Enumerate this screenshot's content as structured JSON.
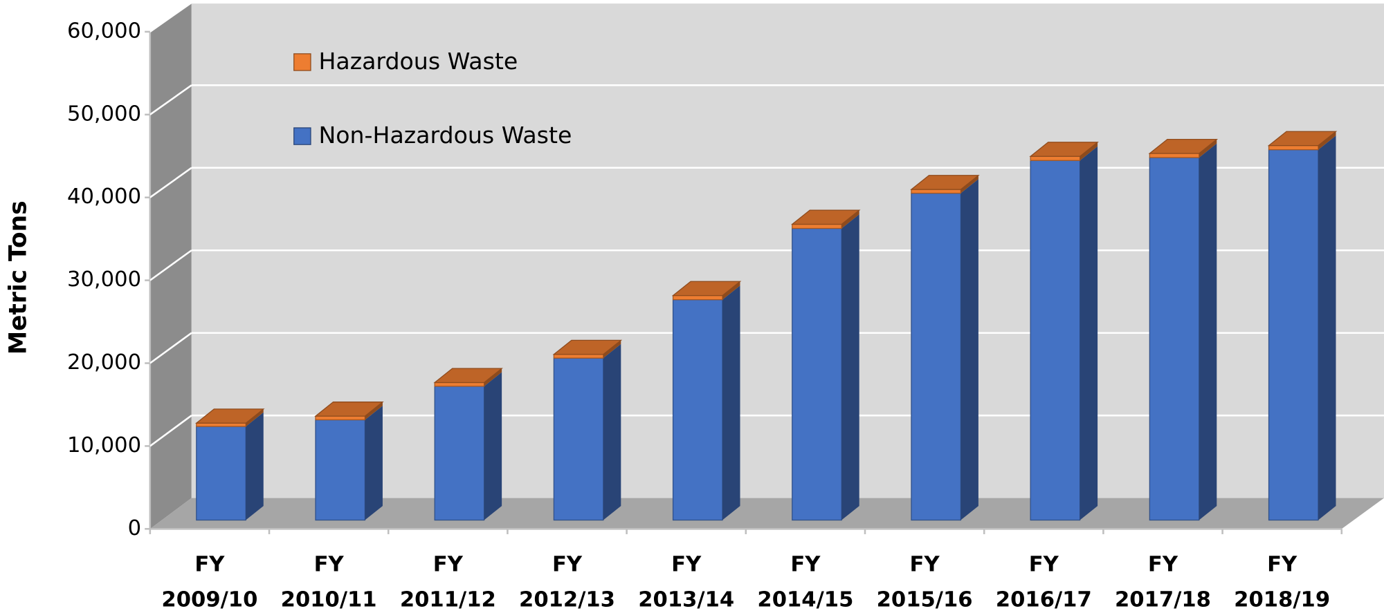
{
  "chart_data": {
    "type": "bar3d_stacked",
    "y_label": "Metric Tons",
    "categories": [
      "FY 2009/10",
      "FY 2010/11",
      "FY 2011/12",
      "FY 2012/13",
      "FY 2013/14",
      "FY 2014/15",
      "FY 2015/16",
      "FY 2016/17",
      "FY 2017/18",
      "FY 2018/19"
    ],
    "series": [
      {
        "name": "Non-Hazardous Waste",
        "color": "#4472c4",
        "values": [
          11300,
          12100,
          16150,
          19550,
          26600,
          35200,
          39450,
          43400,
          43750,
          44700
        ]
      },
      {
        "name": "Hazardous Waste",
        "color": "#ed7d31",
        "values": [
          400,
          450,
          450,
          450,
          500,
          500,
          450,
          500,
          500,
          500
        ]
      }
    ],
    "ylim": [
      0,
      60000
    ],
    "yticks": [
      0,
      {
        "value": 10000,
        "label": "10,000"
      },
      {
        "value": 20000,
        "label": "20,000"
      },
      {
        "value": 30000,
        "label": "30,000"
      },
      {
        "value": 40000,
        "label": "40,000"
      },
      {
        "value": 50000,
        "label": "50,000"
      },
      {
        "value": 60000,
        "label": "60,000"
      }
    ],
    "grid": true
  }
}
